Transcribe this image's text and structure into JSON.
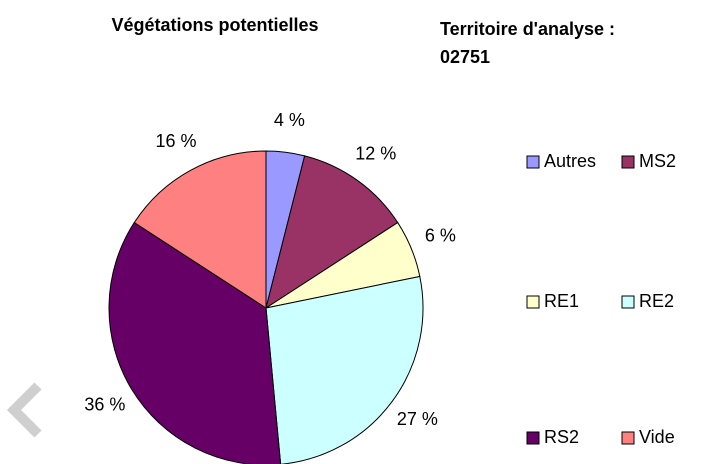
{
  "chart_data": {
    "type": "pie",
    "title": "Végétations potentielles",
    "subtitle": [
      "Territoire d'analyse :",
      "02751"
    ],
    "categories": [
      "Autres",
      "MS2",
      "RE1",
      "RE2",
      "RS2",
      "Vide"
    ],
    "values": [
      4,
      12,
      6,
      27,
      36,
      16
    ],
    "value_labels": [
      "4 %",
      "12 %",
      "6 %",
      "27 %",
      "36 %",
      "16 %"
    ],
    "colors": [
      "#9999ff",
      "#993366",
      "#ffffcc",
      "#ccffff",
      "#660066",
      "#ff8080"
    ],
    "legend": "right"
  }
}
